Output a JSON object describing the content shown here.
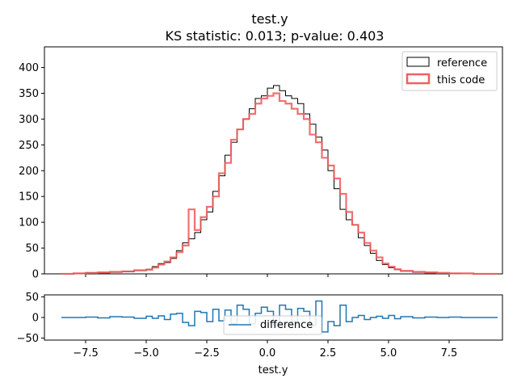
{
  "chart_data": [
    {
      "type": "step",
      "title": "test.y",
      "subtitle": "KS statistic: 0.013; p-value: 0.403",
      "xlabel": "",
      "ylabel": "",
      "xlim": [
        -9.2,
        9.7
      ],
      "ylim": [
        0,
        440
      ],
      "yticks": [
        0,
        50,
        100,
        150,
        200,
        250,
        300,
        350,
        400
      ],
      "ytick_labels": [
        "0",
        "50",
        "100",
        "150",
        "200",
        "250",
        "300",
        "350",
        "400"
      ],
      "xticks": [
        -7.5,
        -5.0,
        -2.5,
        0.0,
        2.5,
        5.0,
        7.5
      ],
      "xtick_labels": [
        "",
        "",
        "",
        "",
        "",
        "",
        ""
      ],
      "legend_position": "top-right",
      "grid": false,
      "x": [
        -8.5,
        -8.0,
        -7.5,
        -7.0,
        -6.5,
        -6.0,
        -5.5,
        -5.0,
        -4.75,
        -4.5,
        -4.25,
        -4.0,
        -3.75,
        -3.5,
        -3.25,
        -3.0,
        -2.75,
        -2.5,
        -2.25,
        -2.0,
        -1.75,
        -1.5,
        -1.25,
        -1.0,
        -0.75,
        -0.5,
        -0.25,
        0.0,
        0.25,
        0.5,
        0.75,
        1.0,
        1.25,
        1.5,
        1.75,
        2.0,
        2.25,
        2.5,
        2.75,
        3.0,
        3.25,
        3.5,
        3.75,
        4.0,
        4.25,
        4.5,
        4.75,
        5.0,
        5.25,
        5.5,
        6.0,
        6.5,
        7.0,
        7.5,
        8.0,
        8.5,
        9.0
      ],
      "series": [
        {
          "name": "reference",
          "color": "#000000",
          "values": [
            0,
            1,
            2,
            2,
            3,
            4,
            6,
            9,
            14,
            20,
            22,
            30,
            45,
            60,
            68,
            80,
            105,
            120,
            160,
            190,
            230,
            255,
            280,
            300,
            320,
            340,
            345,
            360,
            365,
            355,
            345,
            340,
            330,
            310,
            290,
            265,
            240,
            200,
            165,
            125,
            105,
            95,
            70,
            55,
            40,
            26,
            18,
            12,
            8,
            5,
            3,
            2,
            1,
            1,
            0,
            0,
            0
          ]
        },
        {
          "name": "this code",
          "color": "#f06060",
          "values": [
            0,
            1,
            2,
            3,
            4,
            5,
            7,
            8,
            12,
            18,
            24,
            32,
            42,
            55,
            125,
            85,
            110,
            130,
            150,
            195,
            215,
            260,
            280,
            300,
            310,
            330,
            340,
            345,
            350,
            335,
            330,
            320,
            310,
            300,
            270,
            255,
            225,
            210,
            185,
            155,
            120,
            95,
            80,
            60,
            45,
            32,
            20,
            14,
            9,
            6,
            4,
            3,
            2,
            1,
            1,
            0,
            0
          ]
        }
      ]
    },
    {
      "type": "step",
      "title": "",
      "xlabel": "test.y",
      "ylabel": "",
      "xlim": [
        -9.2,
        9.7
      ],
      "ylim": [
        -55,
        55
      ],
      "yticks": [
        -50,
        0,
        50
      ],
      "ytick_labels": [
        "−50",
        "0",
        "50"
      ],
      "xticks": [
        -7.5,
        -5.0,
        -2.5,
        0.0,
        2.5,
        5.0,
        7.5
      ],
      "xtick_labels": [
        "−7.5",
        "−5.0",
        "−2.5",
        "0.0",
        "2.5",
        "5.0",
        "7.5"
      ],
      "legend_position": "bottom-center",
      "grid": false,
      "x": [
        -8.5,
        -8.0,
        -7.5,
        -7.0,
        -6.5,
        -6.0,
        -5.5,
        -5.0,
        -4.75,
        -4.5,
        -4.25,
        -4.0,
        -3.75,
        -3.5,
        -3.25,
        -3.0,
        -2.75,
        -2.5,
        -2.25,
        -2.0,
        -1.75,
        -1.5,
        -1.25,
        -1.0,
        -0.75,
        -0.5,
        -0.25,
        0.0,
        0.25,
        0.5,
        0.75,
        1.0,
        1.25,
        1.5,
        1.75,
        2.0,
        2.25,
        2.5,
        2.75,
        3.0,
        3.25,
        3.5,
        3.75,
        4.0,
        4.25,
        4.5,
        4.75,
        5.0,
        5.25,
        5.5,
        6.0,
        6.5,
        7.0,
        7.5,
        8.0,
        8.5,
        9.0
      ],
      "series": [
        {
          "name": "difference",
          "color": "#1f77b4",
          "values": [
            0,
            0,
            1,
            -1,
            2,
            1,
            -2,
            3,
            -2,
            4,
            -5,
            8,
            10,
            -12,
            -20,
            15,
            12,
            -10,
            20,
            -8,
            18,
            -15,
            30,
            20,
            -15,
            10,
            25,
            15,
            -18,
            30,
            20,
            -10,
            22,
            15,
            -20,
            40,
            -35,
            -10,
            -20,
            30,
            -10,
            0,
            5,
            -5,
            0,
            3,
            -2,
            5,
            -3,
            2,
            -1,
            1,
            0,
            1,
            0,
            0,
            0
          ]
        }
      ]
    }
  ]
}
